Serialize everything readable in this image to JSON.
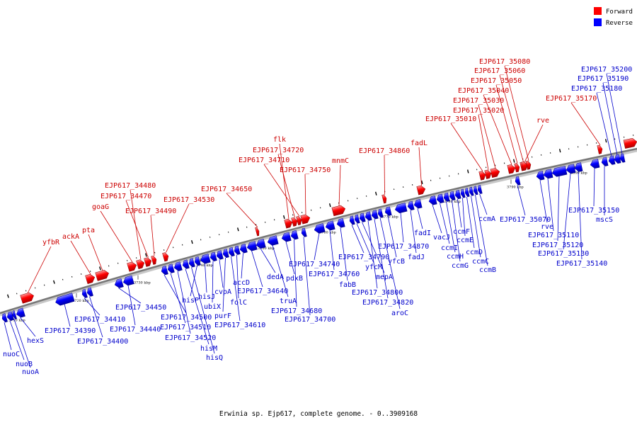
{
  "caption": "Erwinia sp. Ejp617, complete genome. - 0..3909168",
  "legend": [
    {
      "label": "Forward",
      "color": "#ff0000"
    },
    {
      "label": "Reverse",
      "color": "#0000ff"
    }
  ],
  "ticks": [
    "3710 kbp",
    "3720 kbp",
    "3730 kbp",
    "3740 kbp",
    "3750 kbp",
    "3760 kbp",
    "3770 kbp",
    "3780 kbp",
    "3790 kbp",
    "3800 kbp"
  ],
  "forward_genes": [
    "yfbR",
    "ackA",
    "pta",
    "goaG",
    "EJP617_34480",
    "EJP617_34470",
    "EJP617_34490",
    "EJP617_34530",
    "EJP617_34650",
    "flk",
    "EJP617_34720",
    "EJP617_34710",
    "EJP617_34750",
    "mnmC",
    "EJP617_34860",
    "fadL",
    "EJP617_35010",
    "EJP617_35020",
    "EJP617_35030",
    "EJP617_35040",
    "EJP617_35050",
    "EJP617_35060",
    "EJP617_35080",
    "rve",
    "EJP617_35170"
  ],
  "reverse_genes": [
    "nuoC",
    "nuoB",
    "nuoA",
    "hexS",
    "EJP617_34390",
    "EJP617_34410",
    "EJP617_34400",
    "EJP617_34450",
    "EJP617_34440",
    "EJP617_34500",
    "EJP617_34510",
    "EJP617_34520",
    "hisM",
    "hisQ",
    "hisP",
    "hisJ",
    "ubiX",
    "cvpA",
    "purF",
    "EJP617_34610",
    "folC",
    "accD",
    "EJP617_34640",
    "dedA",
    "truA",
    "pdxB",
    "EJP617_34680",
    "EJP617_34700",
    "EJP617_34740",
    "EJP617_34760",
    "fabB",
    "EJP617_34790",
    "yfcM",
    "mepA",
    "EJP617_34800",
    "EJP617_34820",
    "aroC",
    "yfcB",
    "EJP617_34870",
    "fadJ",
    "fadI",
    "vacJ",
    "ccmI",
    "ccmH",
    "ccmG",
    "ccmF",
    "ccmE",
    "ccmD",
    "ccmC",
    "ccmB",
    "ccmA",
    "EJP617_35070",
    "rve",
    "EJP617_35110",
    "EJP617_35120",
    "EJP617_35130",
    "EJP617_35140",
    "EJP617_35150",
    "mscS",
    "EJP617_35180",
    "EJP617_35190",
    "EJP617_35200"
  ]
}
